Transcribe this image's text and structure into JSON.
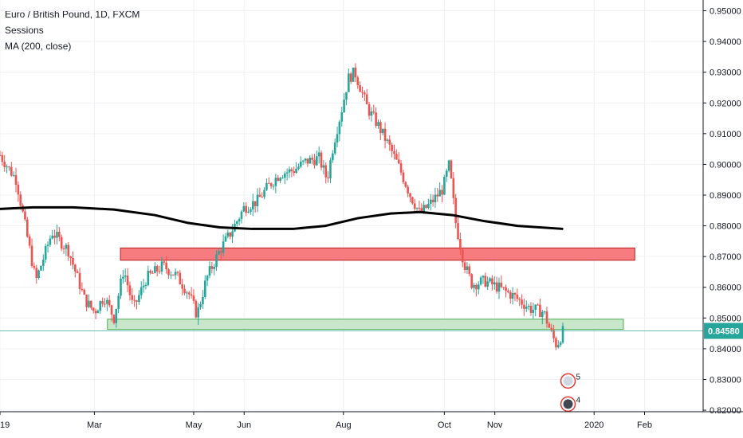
{
  "header": {
    "symbol": "Euro / British Pound, 1D, FXCM",
    "indicator_1": "Sessions",
    "indicator_2": "MA (200, close)"
  },
  "colors": {
    "up": "#26a69a",
    "down": "#ef5350",
    "ma": "#000000",
    "resistance_fill": "#f77c80",
    "resistance_stroke": "#b71c1c",
    "support_fill": "#c8e6c9",
    "support_stroke": "#4caf50",
    "price_line": "#26a69a",
    "grid": "#eef0f3",
    "axis": "#131722"
  },
  "chart_data": {
    "type": "candlestick",
    "x_axis": {
      "ticks": [
        {
          "label": "19",
          "t": 0
        },
        {
          "label": "Mar",
          "t": 58
        },
        {
          "label": "May",
          "t": 119
        },
        {
          "label": "Jun",
          "t": 150
        },
        {
          "label": "Aug",
          "t": 211
        },
        {
          "label": "Oct",
          "t": 273
        },
        {
          "label": "Nov",
          "t": 304
        },
        {
          "label": "2020",
          "t": 365
        },
        {
          "label": "Feb",
          "t": 396
        }
      ],
      "range": [
        0,
        432
      ]
    },
    "y_axis": {
      "ticks": [
        "0.95000",
        "0.94000",
        "0.93000",
        "0.92000",
        "0.91000",
        "0.90000",
        "0.89000",
        "0.88000",
        "0.87000",
        "0.86000",
        "0.85000",
        "0.84000",
        "0.83000",
        "0.82000"
      ],
      "range": [
        0.8195,
        0.9535
      ]
    },
    "last_price": "0.84580",
    "last_price_value": 0.8458,
    "price_path": [
      [
        0,
        0.903
      ],
      [
        10,
        0.895
      ],
      [
        22,
        0.862
      ],
      [
        32,
        0.878
      ],
      [
        42,
        0.872
      ],
      [
        52,
        0.856
      ],
      [
        58,
        0.852
      ],
      [
        64,
        0.857
      ],
      [
        70,
        0.85
      ],
      [
        76,
        0.866
      ],
      [
        82,
        0.853
      ],
      [
        90,
        0.863
      ],
      [
        100,
        0.867
      ],
      [
        108,
        0.864
      ],
      [
        116,
        0.858
      ],
      [
        121,
        0.851
      ],
      [
        127,
        0.863
      ],
      [
        135,
        0.872
      ],
      [
        142,
        0.878
      ],
      [
        150,
        0.886
      ],
      [
        158,
        0.888
      ],
      [
        165,
        0.893
      ],
      [
        172,
        0.897
      ],
      [
        180,
        0.898
      ],
      [
        188,
        0.901
      ],
      [
        196,
        0.902
      ],
      [
        201,
        0.895
      ],
      [
        205,
        0.907
      ],
      [
        210,
        0.918
      ],
      [
        214,
        0.928
      ],
      [
        218,
        0.93
      ],
      [
        222,
        0.924
      ],
      [
        226,
        0.918
      ],
      [
        232,
        0.913
      ],
      [
        240,
        0.905
      ],
      [
        246,
        0.898
      ],
      [
        252,
        0.89
      ],
      [
        258,
        0.884
      ],
      [
        264,
        0.887
      ],
      [
        272,
        0.892
      ],
      [
        276,
        0.9
      ],
      [
        280,
        0.881
      ],
      [
        285,
        0.868
      ],
      [
        290,
        0.861
      ],
      [
        298,
        0.862
      ],
      [
        306,
        0.86
      ],
      [
        316,
        0.857
      ],
      [
        326,
        0.853
      ],
      [
        334,
        0.852
      ],
      [
        338,
        0.846
      ],
      [
        342,
        0.841
      ],
      [
        346,
        0.8458
      ]
    ],
    "moving_average": {
      "name": "MA (200, close)",
      "points": [
        [
          0,
          0.8855
        ],
        [
          20,
          0.886
        ],
        [
          45,
          0.886
        ],
        [
          70,
          0.8853
        ],
        [
          95,
          0.8835
        ],
        [
          115,
          0.881
        ],
        [
          135,
          0.8795
        ],
        [
          155,
          0.879
        ],
        [
          180,
          0.879
        ],
        [
          200,
          0.88
        ],
        [
          220,
          0.8825
        ],
        [
          240,
          0.884
        ],
        [
          258,
          0.8845
        ],
        [
          278,
          0.8835
        ],
        [
          298,
          0.8815
        ],
        [
          318,
          0.88
        ],
        [
          346,
          0.879
        ]
      ]
    },
    "zones": [
      {
        "name": "resistance",
        "t_start": 74,
        "t_end": 390,
        "y_low": 0.8688,
        "y_high": 0.8728
      },
      {
        "name": "support",
        "t_start": 66,
        "t_end": 383,
        "y_low": 0.8463,
        "y_high": 0.8496
      }
    ],
    "events": [
      {
        "label": "5",
        "t": 349,
        "y": 0.8295
      },
      {
        "label": "4",
        "t": 349,
        "y": 0.822
      }
    ],
    "grid": true
  }
}
